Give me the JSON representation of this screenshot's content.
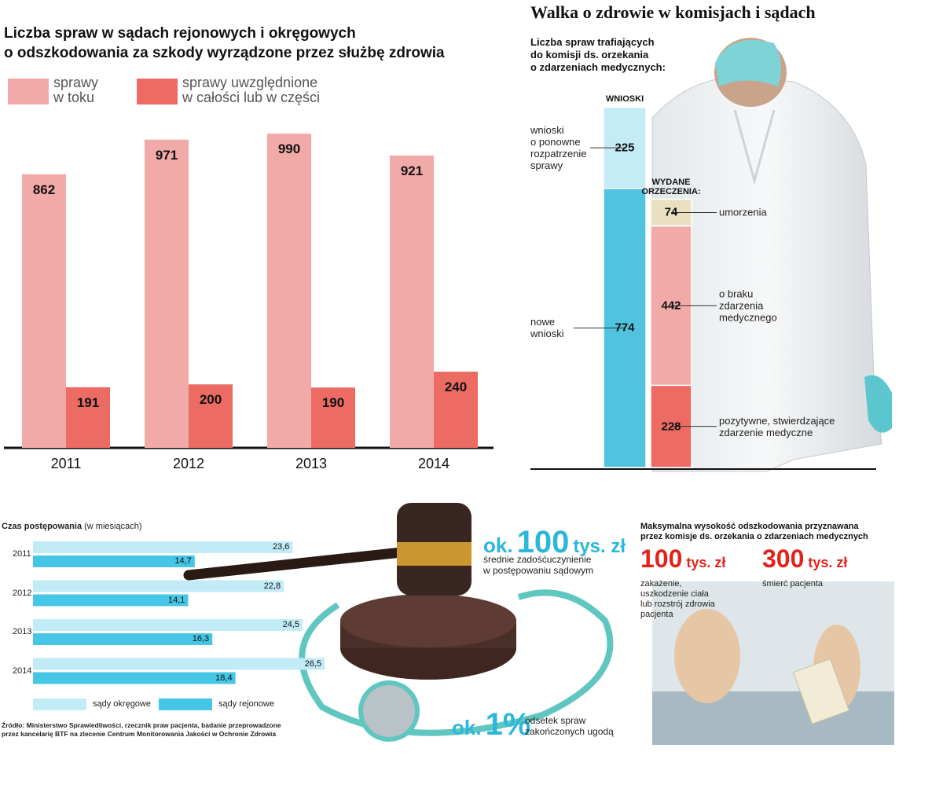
{
  "title": "Walka o zdrowie w komisjach i sądach",
  "chart_data": [
    {
      "type": "bar",
      "title": "Liczba spraw w sądach rejonowych i okręgowych\no odszkodowania za szkody wyrządzone przez służbę zdrowia",
      "categories": [
        "2011",
        "2012",
        "2013",
        "2014"
      ],
      "series": [
        {
          "name": "sprawy\nw toku",
          "color": "#f2aaa8",
          "values": [
            862,
            971,
            990,
            921
          ]
        },
        {
          "name": "sprawy uwzględnione\nw całości lub w części",
          "color": "#ec6b62",
          "values": [
            191,
            200,
            190,
            240
          ]
        }
      ],
      "ylim": [
        0,
        1000
      ],
      "legend": "top-left"
    },
    {
      "type": "bar",
      "stacked": true,
      "title": "Liczba spraw trafiających\ndo komisji ds. orzekania\no zdarzeniach medycznych:",
      "categories": [
        "WNIOSKI",
        "WYDANE\nORZECZENIA:"
      ],
      "series": [
        {
          "name": "nowe\nwnioski",
          "color": "#4fc3e0",
          "values": [
            774,
            null
          ]
        },
        {
          "name": "wnioski\no ponowne\nrozpatrzenie\nsprawy",
          "color": "#c4ebf6",
          "values": [
            225,
            null
          ]
        },
        {
          "name": "pozytywne, stwierdzające\nzdarzenie medyczne",
          "color": "#ec6b62",
          "values": [
            null,
            228
          ]
        },
        {
          "name": "o braku\nzdarzenia\nmedycznego",
          "color": "#f2aaa8",
          "values": [
            null,
            442
          ]
        },
        {
          "name": "umorzenia",
          "color": "#e9e0c2",
          "values": [
            null,
            74
          ]
        }
      ],
      "ylim": [
        0,
        1000
      ],
      "legend": "inline"
    },
    {
      "type": "bar",
      "orientation": "horizontal",
      "title": "Czas postępowania",
      "subtitle": "(w miesiącach)",
      "categories": [
        "2011",
        "2012",
        "2013",
        "2014"
      ],
      "series": [
        {
          "name": "sądy okręgowe",
          "color": "#c2ebf8",
          "values": [
            23.6,
            22.8,
            24.5,
            26.5
          ],
          "value_labels": [
            "23,6",
            "22,8",
            "24,5",
            "26,5"
          ]
        },
        {
          "name": "sądy rejonowe",
          "color": "#45c6e6",
          "values": [
            14.7,
            14.1,
            16.3,
            18.4
          ],
          "value_labels": [
            "14,7",
            "14,1",
            "16,3",
            "18,4"
          ]
        }
      ],
      "xlim": [
        0,
        30
      ],
      "legend": "bottom-left"
    }
  ],
  "facts": [
    {
      "prefix": "ok.",
      "amount": "100",
      "unit": "tys. zł",
      "text": "średnie zadośćuczynienie\nw postępowaniu sądowym"
    },
    {
      "prefix": "ok.",
      "amount": "1%",
      "text": "odsetek spraw\nzakończonych ugodą"
    }
  ],
  "compensation": {
    "title": "Maksymalna wysokość odszkodowania przyznawana\nprzez komisje ds. orzekania o zdarzeniach medycznych",
    "items": [
      {
        "amount": "100",
        "unit": "tys. zł",
        "text": "zakażenie,\nuszkodzenie ciała\nlub rozstrój zdrowia\npacjenta"
      },
      {
        "amount": "300",
        "unit": "tys. zł",
        "text": "śmierć pacjenta"
      }
    ]
  },
  "source": "Źródło: Ministerstwo Sprawiedliwości, rzecznik praw pacjenta, badanie przeprowadzone\nprzez kancelarię BTF na zlecenie Centrum Monitorowania Jakości w Ochronie Zdrowia"
}
